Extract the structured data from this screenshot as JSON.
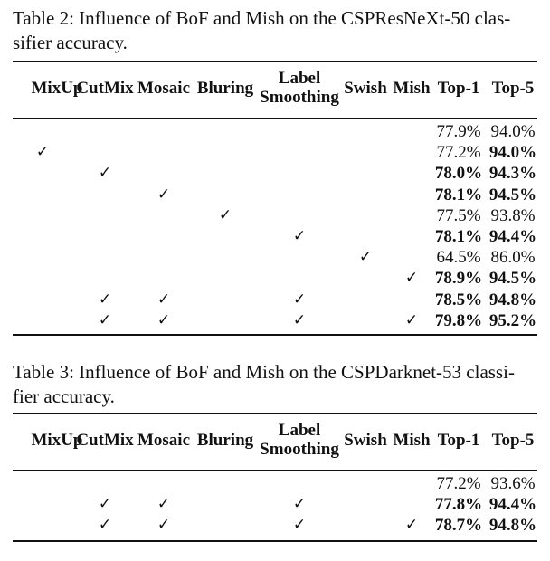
{
  "columns": [
    "MixUp",
    "CutMix",
    "Mosaic",
    "Bluring",
    "Label Smoothing",
    "Swish",
    "Mish",
    "Top-1",
    "Top-5"
  ],
  "check_mark": "✓",
  "tables": [
    {
      "caption": "Table 2: Influence of BoF and Mish on the CSPResNeXt-50 classifier accuracy.",
      "caption_lines": [
        "Table 2: Influence of BoF and Mish on the CSPResNeXt-50 clas-",
        "sifier accuracy."
      ],
      "rows": [
        {
          "checks": [
            false,
            false,
            false,
            false,
            false,
            false,
            false
          ],
          "top1": "77.9%",
          "top5": "94.0%",
          "top1_bold": false,
          "top5_bold": false
        },
        {
          "checks": [
            true,
            false,
            false,
            false,
            false,
            false,
            false
          ],
          "top1": "77.2%",
          "top5": "94.0%",
          "top1_bold": false,
          "top5_bold": true
        },
        {
          "checks": [
            false,
            true,
            false,
            false,
            false,
            false,
            false
          ],
          "top1": "78.0%",
          "top5": "94.3%",
          "top1_bold": true,
          "top5_bold": true
        },
        {
          "checks": [
            false,
            false,
            true,
            false,
            false,
            false,
            false
          ],
          "top1": "78.1%",
          "top5": "94.5%",
          "top1_bold": true,
          "top5_bold": true
        },
        {
          "checks": [
            false,
            false,
            false,
            true,
            false,
            false,
            false
          ],
          "top1": "77.5%",
          "top5": "93.8%",
          "top1_bold": false,
          "top5_bold": false
        },
        {
          "checks": [
            false,
            false,
            false,
            false,
            true,
            false,
            false
          ],
          "top1": "78.1%",
          "top5": "94.4%",
          "top1_bold": true,
          "top5_bold": true
        },
        {
          "checks": [
            false,
            false,
            false,
            false,
            false,
            true,
            false
          ],
          "top1": "64.5%",
          "top5": "86.0%",
          "top1_bold": false,
          "top5_bold": false
        },
        {
          "checks": [
            false,
            false,
            false,
            false,
            false,
            false,
            true
          ],
          "top1": "78.9%",
          "top5": "94.5%",
          "top1_bold": true,
          "top5_bold": true
        },
        {
          "checks": [
            false,
            true,
            true,
            false,
            true,
            false,
            false
          ],
          "top1": "78.5%",
          "top5": "94.8%",
          "top1_bold": true,
          "top5_bold": true
        },
        {
          "checks": [
            false,
            true,
            true,
            false,
            true,
            false,
            true
          ],
          "top1": "79.8%",
          "top5": "95.2%",
          "top1_bold": true,
          "top5_bold": true
        }
      ]
    },
    {
      "caption": "Table 3: Influence of BoF and Mish on the CSPDarknet-53 classifier accuracy.",
      "caption_lines": [
        "Table 3: Influence of BoF and Mish on the CSPDarknet-53 classi-",
        "fier accuracy."
      ],
      "rows": [
        {
          "checks": [
            false,
            false,
            false,
            false,
            false,
            false,
            false
          ],
          "top1": "77.2%",
          "top5": "93.6%",
          "top1_bold": false,
          "top5_bold": false
        },
        {
          "checks": [
            false,
            true,
            true,
            false,
            true,
            false,
            false
          ],
          "top1": "77.8%",
          "top5": "94.4%",
          "top1_bold": true,
          "top5_bold": true
        },
        {
          "checks": [
            false,
            true,
            true,
            false,
            true,
            false,
            true
          ],
          "top1": "78.7%",
          "top5": "94.8%",
          "top1_bold": true,
          "top5_bold": true
        }
      ]
    }
  ]
}
